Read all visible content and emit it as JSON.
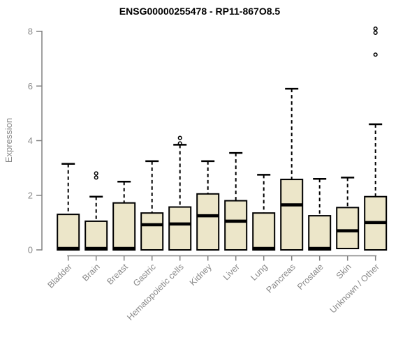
{
  "chart_data": {
    "type": "boxplot",
    "title": "ENSG00000255478 - RP11-867O8.5",
    "ylabel": "Expression",
    "xlabel": "",
    "ylim": [
      0,
      8
    ],
    "yticks": [
      0,
      2,
      4,
      6,
      8
    ],
    "grid": false,
    "legend_position": "none",
    "categories": [
      "Bladder",
      "Brain",
      "Breast",
      "Gastric",
      "Hematopoietic cells",
      "Kidney",
      "Liver",
      "Lung",
      "Pancreas",
      "Prostate",
      "Skin",
      "Unknown / Other"
    ],
    "series": [
      {
        "category": "Bladder",
        "whisker_low": 0,
        "q1": 0,
        "median": 0.05,
        "q3": 1.3,
        "whisker_high": 3.15,
        "outliers": []
      },
      {
        "category": "Brain",
        "whisker_low": 0,
        "q1": 0,
        "median": 0.05,
        "q3": 1.05,
        "whisker_high": 1.95,
        "outliers": [
          2.65,
          2.8
        ]
      },
      {
        "category": "Breast",
        "whisker_low": 0,
        "q1": 0,
        "median": 0.05,
        "q3": 1.72,
        "whisker_high": 2.5,
        "outliers": []
      },
      {
        "category": "Gastric",
        "whisker_low": 0,
        "q1": 0,
        "median": 0.92,
        "q3": 1.35,
        "whisker_high": 3.25,
        "outliers": []
      },
      {
        "category": "Hematopoietic cells",
        "whisker_low": 0,
        "q1": 0,
        "median": 0.95,
        "q3": 1.57,
        "whisker_high": 3.85,
        "outliers": [
          3.9,
          4.1
        ]
      },
      {
        "category": "Kidney",
        "whisker_low": 0,
        "q1": 0,
        "median": 1.25,
        "q3": 2.05,
        "whisker_high": 3.25,
        "outliers": []
      },
      {
        "category": "Liver",
        "whisker_low": 0,
        "q1": 0,
        "median": 1.05,
        "q3": 1.8,
        "whisker_high": 3.55,
        "outliers": []
      },
      {
        "category": "Lung",
        "whisker_low": 0,
        "q1": 0,
        "median": 0.05,
        "q3": 1.35,
        "whisker_high": 2.75,
        "outliers": []
      },
      {
        "category": "Pancreas",
        "whisker_low": 0,
        "q1": 0,
        "median": 1.65,
        "q3": 2.58,
        "whisker_high": 5.9,
        "outliers": []
      },
      {
        "category": "Prostate",
        "whisker_low": 0,
        "q1": 0,
        "median": 0.05,
        "q3": 1.25,
        "whisker_high": 2.6,
        "outliers": []
      },
      {
        "category": "Skin",
        "whisker_low": 0.05,
        "q1": 0.05,
        "median": 0.7,
        "q3": 1.55,
        "whisker_high": 2.65,
        "outliers": []
      },
      {
        "category": "Unknown / Other",
        "whisker_low": 0,
        "q1": 0,
        "median": 1.0,
        "q3": 1.95,
        "whisker_high": 4.6,
        "outliers": [
          7.15,
          7.95,
          8.1
        ]
      }
    ],
    "colors": {
      "box_fill": "#ece6c9",
      "box_stroke": "#000000",
      "median": "#000000",
      "whisker": "#000000",
      "outlier": "#000000",
      "axis": "#808080",
      "tick_label": "#8a8a8a",
      "title": "#000000",
      "background": "#ffffff"
    }
  }
}
